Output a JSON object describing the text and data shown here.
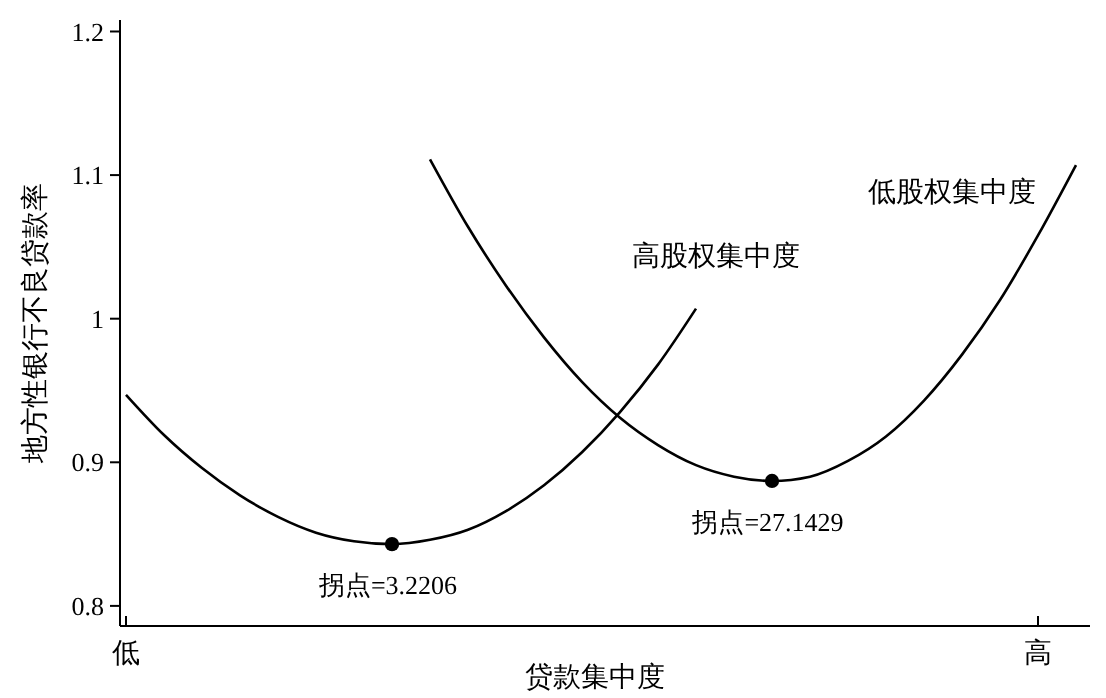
{
  "chart_data": {
    "type": "line",
    "xlabel": "贷款集中度",
    "ylabel": "地方性银行不良贷款率",
    "categories": [
      "低",
      null,
      null,
      null,
      null,
      null,
      null,
      null,
      null,
      null,
      null,
      null,
      null,
      null,
      null,
      null,
      null,
      null,
      null,
      null,
      null,
      null,
      null,
      null,
      "高",
      null
    ],
    "series": [
      {
        "name": "高股权集中度",
        "color": "#000000",
        "values": [
          0.947,
          0.919,
          0.896,
          0.877,
          0.862,
          0.851,
          0.845,
          0.843,
          0.846,
          0.853,
          0.866,
          0.884,
          0.907,
          0.935,
          0.968,
          1.007,
          null,
          null,
          null,
          null,
          null,
          null,
          null,
          null,
          null,
          null
        ]
      },
      {
        "name": "低股权集中度",
        "color": "#000000",
        "values": [
          null,
          null,
          null,
          null,
          null,
          null,
          null,
          null,
          1.111,
          1.064,
          1.023,
          0.987,
          0.956,
          0.931,
          0.912,
          0.898,
          0.89,
          0.887,
          0.89,
          0.901,
          0.918,
          0.943,
          0.975,
          1.013,
          1.058,
          1.107
        ]
      },
      {
        "type": "scatter",
        "color": "#000000",
        "marker": "circle",
        "values": [
          null,
          null,
          null,
          null,
          null,
          null,
          null,
          0.843,
          null,
          null,
          null,
          null,
          null,
          null,
          null,
          null,
          null,
          0.887,
          null,
          null,
          null,
          null,
          null,
          null,
          null,
          null
        ]
      }
    ],
    "annotations": [
      "拐点=3.2206",
      "拐点=27.1429"
    ],
    "ylim": [
      0.786,
      1.208
    ],
    "yticks": [
      0.8,
      0.9,
      1,
      1.1,
      1.2
    ],
    "grid": false,
    "legend": false,
    "marker": "none"
  }
}
